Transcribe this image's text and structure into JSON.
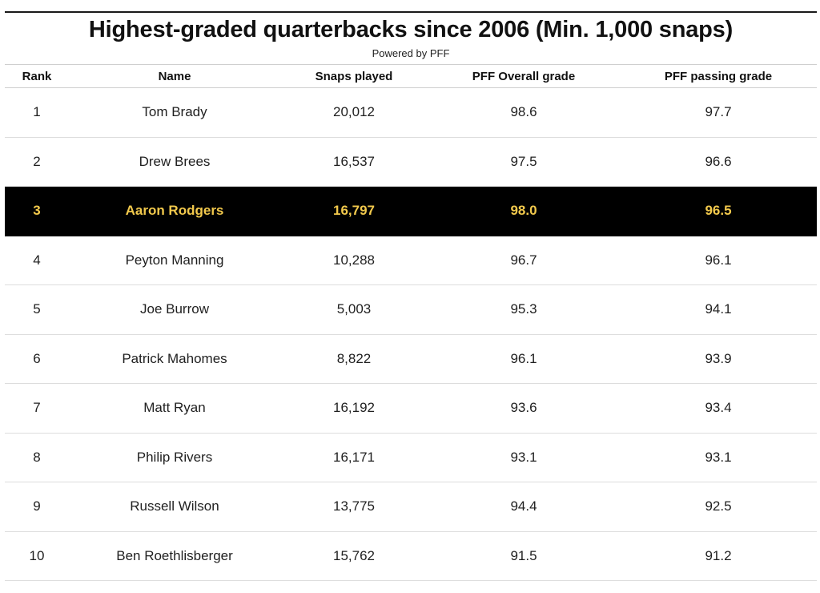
{
  "title": "Highest-graded quarterbacks since 2006 (Min. 1,000 snaps)",
  "subtitle": "Powered by PFF",
  "colors": {
    "highlight_background": "#000000",
    "highlight_text": "#f2c94c",
    "text": "#1f1f1f"
  },
  "columns": [
    "Rank",
    "Name",
    "Snaps played",
    "PFF Overall grade",
    "PFF passing grade"
  ],
  "highlighted_row": 3,
  "chart_data": {
    "type": "table",
    "title": "Highest-graded quarterbacks since 2006 (Min. 1,000 snaps)",
    "subtitle": "Powered by PFF",
    "columns": [
      "Rank",
      "Name",
      "Snaps played",
      "PFF Overall grade",
      "PFF passing grade"
    ],
    "rows": [
      {
        "rank": "1",
        "name": "Tom Brady",
        "snaps": "20,012",
        "overall": "98.6",
        "passing": "97.7"
      },
      {
        "rank": "2",
        "name": "Drew Brees",
        "snaps": "16,537",
        "overall": "97.5",
        "passing": "96.6"
      },
      {
        "rank": "3",
        "name": "Aaron Rodgers",
        "snaps": "16,797",
        "overall": "98.0",
        "passing": "96.5"
      },
      {
        "rank": "4",
        "name": "Peyton Manning",
        "snaps": "10,288",
        "overall": "96.7",
        "passing": "96.1"
      },
      {
        "rank": "5",
        "name": "Joe Burrow",
        "snaps": "5,003",
        "overall": "95.3",
        "passing": "94.1"
      },
      {
        "rank": "6",
        "name": "Patrick Mahomes",
        "snaps": "8,822",
        "overall": "96.1",
        "passing": "93.9"
      },
      {
        "rank": "7",
        "name": "Matt Ryan",
        "snaps": "16,192",
        "overall": "93.6",
        "passing": "93.4"
      },
      {
        "rank": "8",
        "name": "Philip Rivers",
        "snaps": "16,171",
        "overall": "93.1",
        "passing": "93.1"
      },
      {
        "rank": "9",
        "name": "Russell Wilson",
        "snaps": "13,775",
        "overall": "94.4",
        "passing": "92.5"
      },
      {
        "rank": "10",
        "name": "Ben Roethlisberger",
        "snaps": "15,762",
        "overall": "91.5",
        "passing": "91.2"
      }
    ]
  }
}
